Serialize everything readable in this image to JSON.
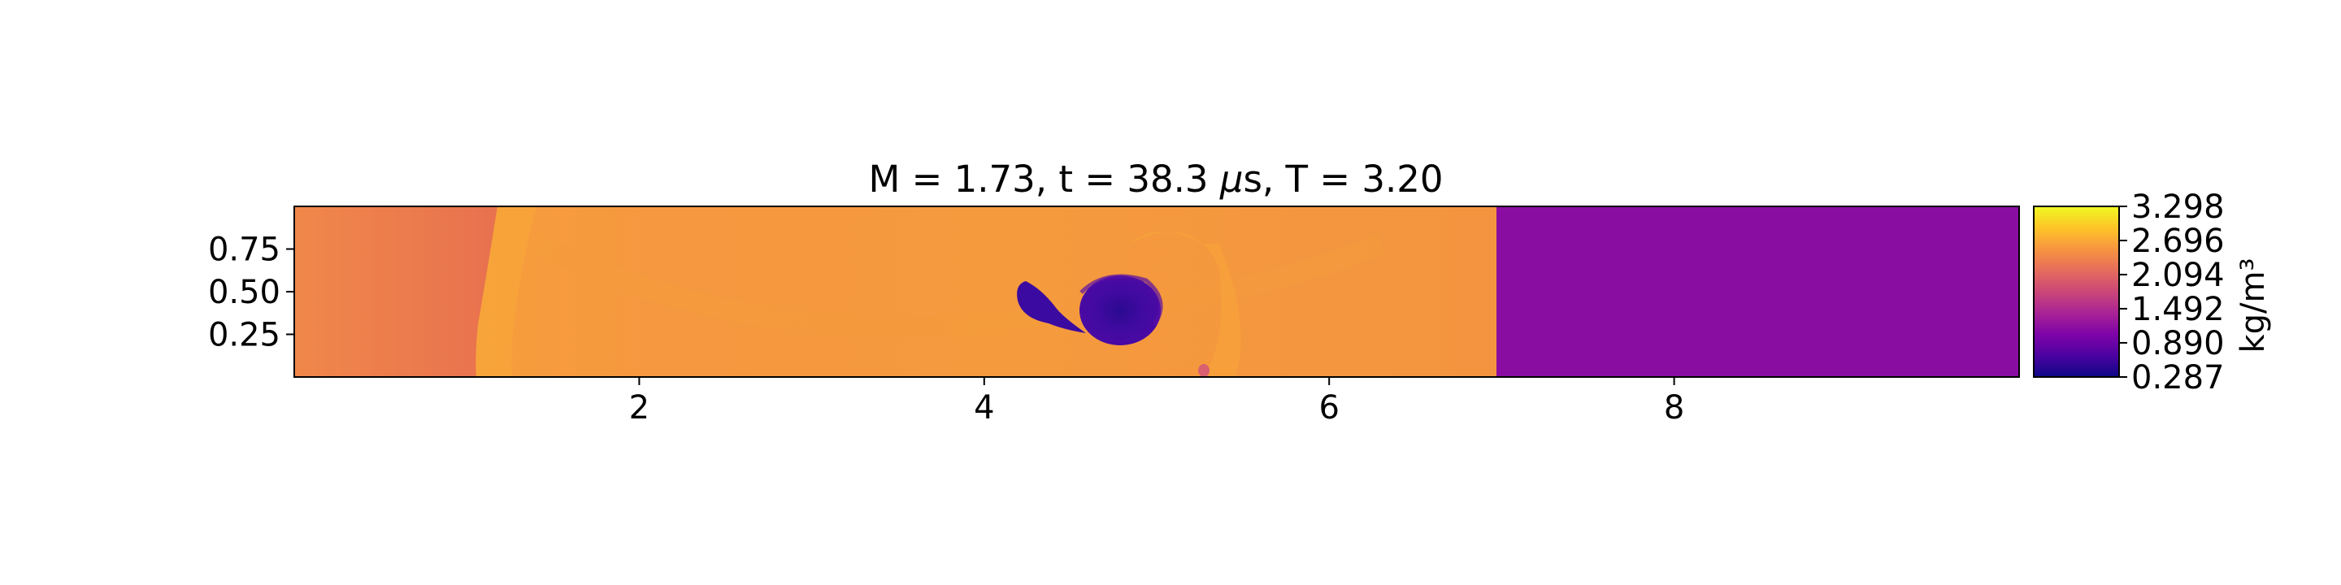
{
  "chart_data": {
    "type": "heatmap",
    "title": "M = 1.73, t = 38.3 µs, T = 3.20",
    "title_prefix": "M = 1.73, t = 38.3 ",
    "title_mu": "µ",
    "title_suffix": "s, T = 3.20",
    "xlim": [
      0,
      10
    ],
    "ylim": [
      0,
      1
    ],
    "xticks": [
      2,
      4,
      6,
      8
    ],
    "xtick_labels": [
      "2",
      "4",
      "6",
      "8"
    ],
    "yticks": [
      0.25,
      0.5,
      0.75
    ],
    "ytick_labels": [
      "0.25",
      "0.50",
      "0.75"
    ],
    "colorbar": {
      "label": "kg/m³",
      "colormap": "plasma",
      "min": 0.287,
      "max": 3.298,
      "ticks": [
        0.287,
        0.89,
        1.492,
        2.094,
        2.696,
        3.298
      ],
      "tick_labels": [
        "0.287",
        "0.890",
        "1.492",
        "2.094",
        "2.696",
        "3.298"
      ]
    },
    "field_features": {
      "shocked_gas_density": 2.6,
      "shocked_gas_color": "#f5963c",
      "left_region_color": "#e8744f",
      "unshocked_gas_density": 1.05,
      "unshocked_gas_color": "#8a0da2",
      "shock_front_x": 6.97,
      "vortex_core_density": 0.45,
      "vortex_color": "#3d0aa0",
      "vortex_center": [
        4.8,
        0.43
      ],
      "vortex_tail_center": [
        4.3,
        0.43
      ],
      "secondary_blob": [
        5.28,
        0.04
      ]
    }
  }
}
